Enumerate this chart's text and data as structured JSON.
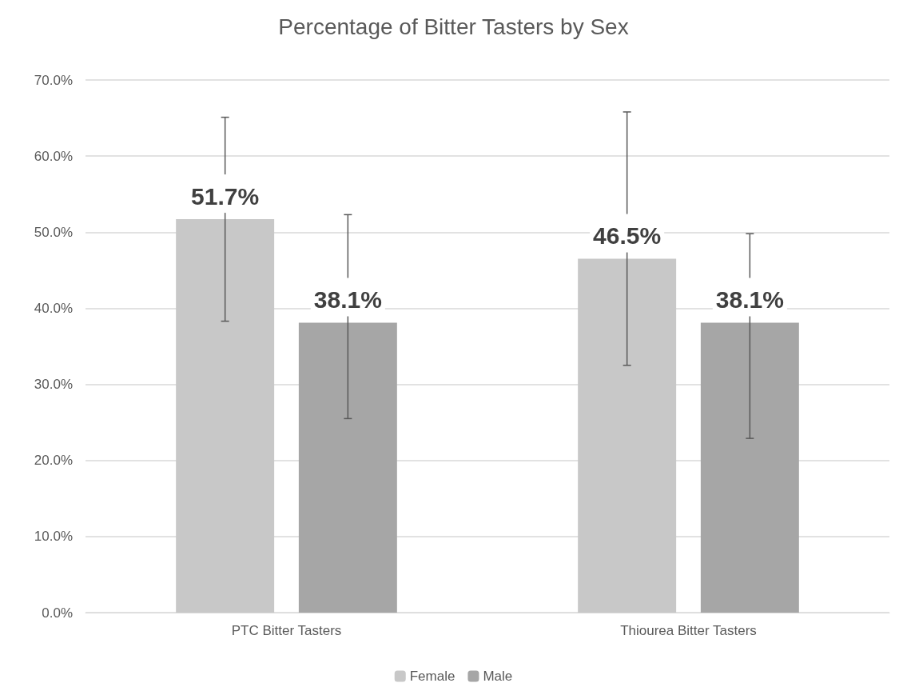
{
  "chart_data": {
    "type": "bar",
    "title": "Percentage of Bitter Tasters by Sex",
    "categories": [
      "PTC Bitter Tasters",
      "Thiourea Bitter Tasters"
    ],
    "series": [
      {
        "name": "Female",
        "color": "#c8c8c8",
        "values": [
          51.7,
          46.5
        ],
        "value_labels": [
          "51.7%",
          "46.5%"
        ],
        "errors": [
          [
            38.3,
            65.1
          ],
          [
            32.5,
            65.8
          ]
        ]
      },
      {
        "name": "Male",
        "color": "#a6a6a6",
        "values": [
          38.1,
          38.1
        ],
        "value_labels": [
          "38.1%",
          "38.1%"
        ],
        "errors": [
          [
            25.5,
            52.3
          ],
          [
            22.9,
            49.8
          ]
        ]
      }
    ],
    "ylim": [
      0,
      70
    ],
    "yticks": [
      {
        "value": 0,
        "label": "0.0%"
      },
      {
        "value": 10,
        "label": "10.0%"
      },
      {
        "value": 20,
        "label": "20.0%"
      },
      {
        "value": 30,
        "label": "30.0%"
      },
      {
        "value": 40,
        "label": "40.0%"
      },
      {
        "value": 50,
        "label": "50.0%"
      },
      {
        "value": 60,
        "label": "60.0%"
      },
      {
        "value": 70,
        "label": "70.0%"
      }
    ],
    "grid": true,
    "legend": "bottom"
  }
}
